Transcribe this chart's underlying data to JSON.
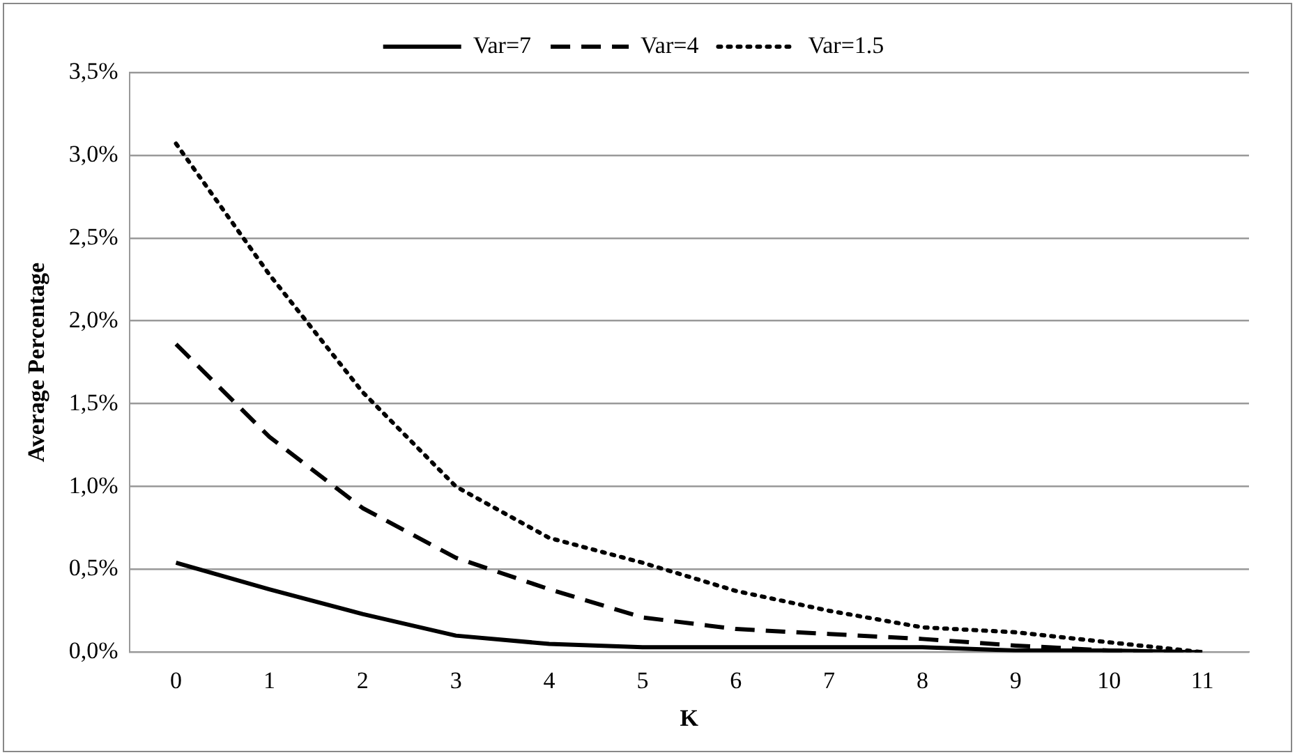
{
  "chart_data": {
    "type": "line",
    "xlabel": "K",
    "ylabel": "Average Percentage",
    "categories": [
      "0",
      "1",
      "2",
      "3",
      "4",
      "5",
      "6",
      "7",
      "8",
      "9",
      "10",
      "11"
    ],
    "series": [
      {
        "name": "Var=7",
        "color": "#000000",
        "line_style": "solid",
        "values": [
          0.54,
          0.38,
          0.23,
          0.1,
          0.05,
          0.03,
          0.03,
          0.03,
          0.03,
          0.01,
          0.01,
          0
        ]
      },
      {
        "name": "Var=4",
        "color": "#000000",
        "line_style": "dashed",
        "values": [
          1.86,
          1.3,
          0.87,
          0.57,
          0.38,
          0.21,
          0.14,
          0.11,
          0.08,
          0.04,
          0.01,
          0
        ]
      },
      {
        "name": "Var=1.5",
        "color": "#000000",
        "line_style": "dotted",
        "values": [
          3.07,
          2.28,
          1.57,
          1.0,
          0.69,
          0.54,
          0.37,
          0.25,
          0.15,
          0.12,
          0.06,
          0
        ]
      }
    ],
    "ylim": [
      0,
      3.5
    ],
    "yticks": [
      {
        "value": 0,
        "label": "0,0%"
      },
      {
        "value": 0.5,
        "label": "0,5%"
      },
      {
        "value": 1,
        "label": "1,0%"
      },
      {
        "value": 1.5,
        "label": "1,5%"
      },
      {
        "value": 2,
        "label": "2,0%"
      },
      {
        "value": 2.5,
        "label": "2,5%"
      },
      {
        "value": 3,
        "label": "3,0%"
      },
      {
        "value": 3.5,
        "label": "3,5%"
      }
    ],
    "grid": "y",
    "legend": "top",
    "marker": "none"
  }
}
